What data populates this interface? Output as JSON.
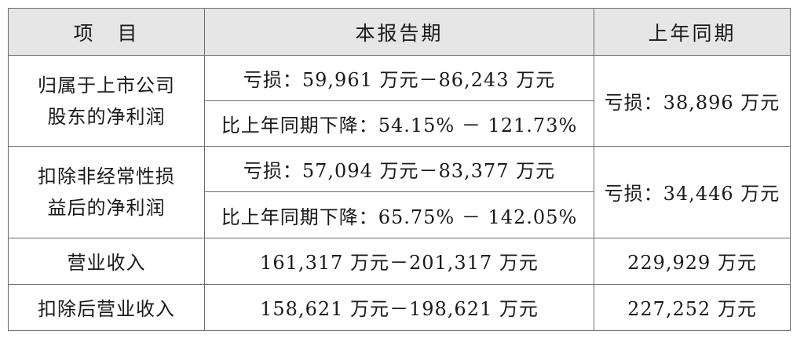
{
  "table": {
    "headers": {
      "item": "项　目",
      "current_period": "本报告期",
      "prior_period": "上年同期"
    },
    "rows": [
      {
        "item_line1": "归属于上市公司",
        "item_line2": "股东的净利润",
        "current_range": "亏损：59,961 万元－86,243 万元",
        "current_change": "比上年同期下降：54.15% － 121.73%",
        "prior": "亏损：38,896 万元"
      },
      {
        "item_line1": "扣除非经常性损",
        "item_line2": "益后的净利润",
        "current_range": "亏损：57,094 万元－83,377 万元",
        "current_change": "比上年同期下降：65.75% － 142.05%",
        "prior": "亏损：34,446 万元"
      },
      {
        "item": "营业收入",
        "current": "161,317 万元－201,317 万元",
        "prior": "229,929 万元"
      },
      {
        "item": "扣除后营业收入",
        "current": "158,621 万元－198,621 万元",
        "prior": "227,252 万元"
      }
    ]
  }
}
